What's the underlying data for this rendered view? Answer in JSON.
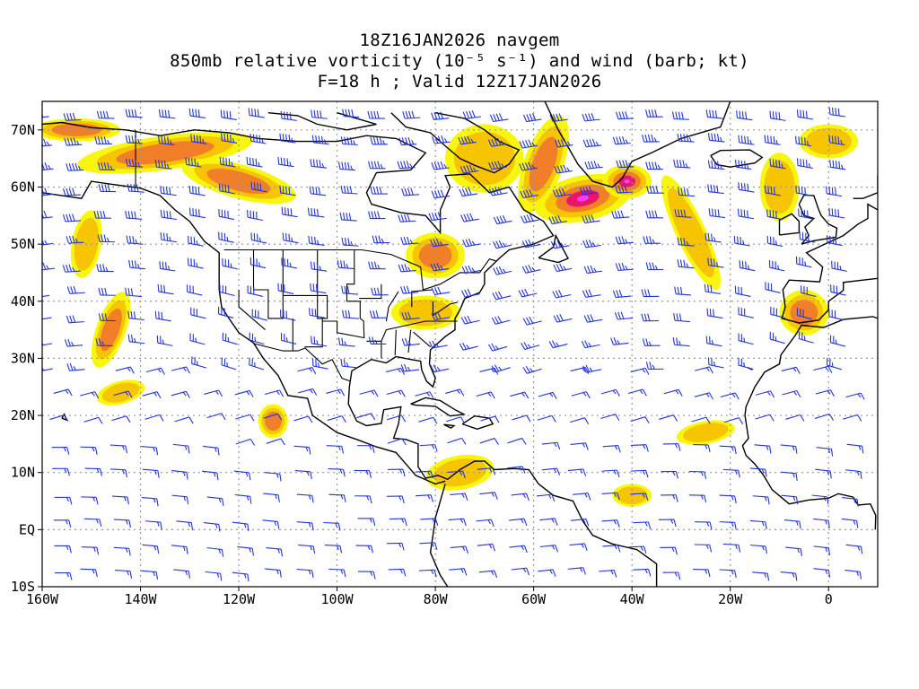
{
  "title": {
    "line1": "18Z16JAN2026 navgem",
    "line2": "850mb relative vorticity (10⁻⁵ s⁻¹) and wind (barb; kt)",
    "line3": "F=18 h ; Valid 12Z17JAN2026"
  },
  "axes": {
    "lat_labels": [
      "70N",
      "60N",
      "50N",
      "40N",
      "30N",
      "20N",
      "10N",
      "EQ",
      "10S"
    ],
    "lon_labels": [
      "160W",
      "140W",
      "120W",
      "100W",
      "80W",
      "60W",
      "40W",
      "20W",
      "0"
    ],
    "lat_range": [
      -10,
      75
    ],
    "lon_range": [
      -160,
      10
    ],
    "gridlines": "dotted"
  },
  "colors": {
    "vort_low": "#f7f700",
    "vort_mid": "#f5c200",
    "vort_high": "#f07a2a",
    "vort_peak": "#e8106e",
    "vort_max": "#ff40ff",
    "barb": "#2233dd",
    "coast": "#000000",
    "grid": "#9a9a9a"
  },
  "vorticity_patches": [
    {
      "lon": -135,
      "lat": 66,
      "rx": 18,
      "ry": 3,
      "level": 2,
      "rot": -8
    },
    {
      "lon": -120,
      "lat": 61,
      "rx": 12,
      "ry": 3,
      "level": 2,
      "rot": 15
    },
    {
      "lon": -153,
      "lat": 70,
      "rx": 9,
      "ry": 2,
      "level": 2,
      "rot": 0
    },
    {
      "lon": -146,
      "lat": 35,
      "rx": 3,
      "ry": 7,
      "level": 2,
      "rot": 20
    },
    {
      "lon": -151,
      "lat": 50,
      "rx": 3,
      "ry": 6,
      "level": 1,
      "rot": 10
    },
    {
      "lon": -113,
      "lat": 19,
      "rx": 3,
      "ry": 3,
      "level": 2,
      "rot": 0
    },
    {
      "lon": -80,
      "lat": 48,
      "rx": 6,
      "ry": 4,
      "level": 2,
      "rot": 0
    },
    {
      "lon": -82,
      "lat": 38,
      "rx": 7,
      "ry": 3,
      "level": 1,
      "rot": 0
    },
    {
      "lon": -70,
      "lat": 65,
      "rx": 8,
      "ry": 6,
      "level": 1,
      "rot": 0
    },
    {
      "lon": -50,
      "lat": 58,
      "rx": 10,
      "ry": 4,
      "level": 4,
      "rot": -12
    },
    {
      "lon": -41,
      "lat": 61,
      "rx": 5,
      "ry": 3,
      "level": 4,
      "rot": 0
    },
    {
      "lon": -58,
      "lat": 64,
      "rx": 4,
      "ry": 9,
      "level": 2,
      "rot": 20
    },
    {
      "lon": -28,
      "lat": 52,
      "rx": 3,
      "ry": 11,
      "level": 1,
      "rot": -25
    },
    {
      "lon": -10,
      "lat": 60,
      "rx": 4,
      "ry": 6,
      "level": 1,
      "rot": 0
    },
    {
      "lon": -5,
      "lat": 38,
      "rx": 5,
      "ry": 4,
      "level": 2,
      "rot": 0
    },
    {
      "lon": -75,
      "lat": 10,
      "rx": 7,
      "ry": 3,
      "level": 1,
      "rot": -10
    },
    {
      "lon": -40,
      "lat": 6,
      "rx": 4,
      "ry": 2,
      "level": 1,
      "rot": 0
    },
    {
      "lon": -25,
      "lat": 17,
      "rx": 6,
      "ry": 2,
      "level": 1,
      "rot": -10
    },
    {
      "lon": 0,
      "lat": 68,
      "rx": 6,
      "ry": 3,
      "level": 1,
      "rot": 0
    },
    {
      "lon": -144,
      "lat": 24,
      "rx": 5,
      "ry": 2,
      "level": 1,
      "rot": -15
    }
  ]
}
